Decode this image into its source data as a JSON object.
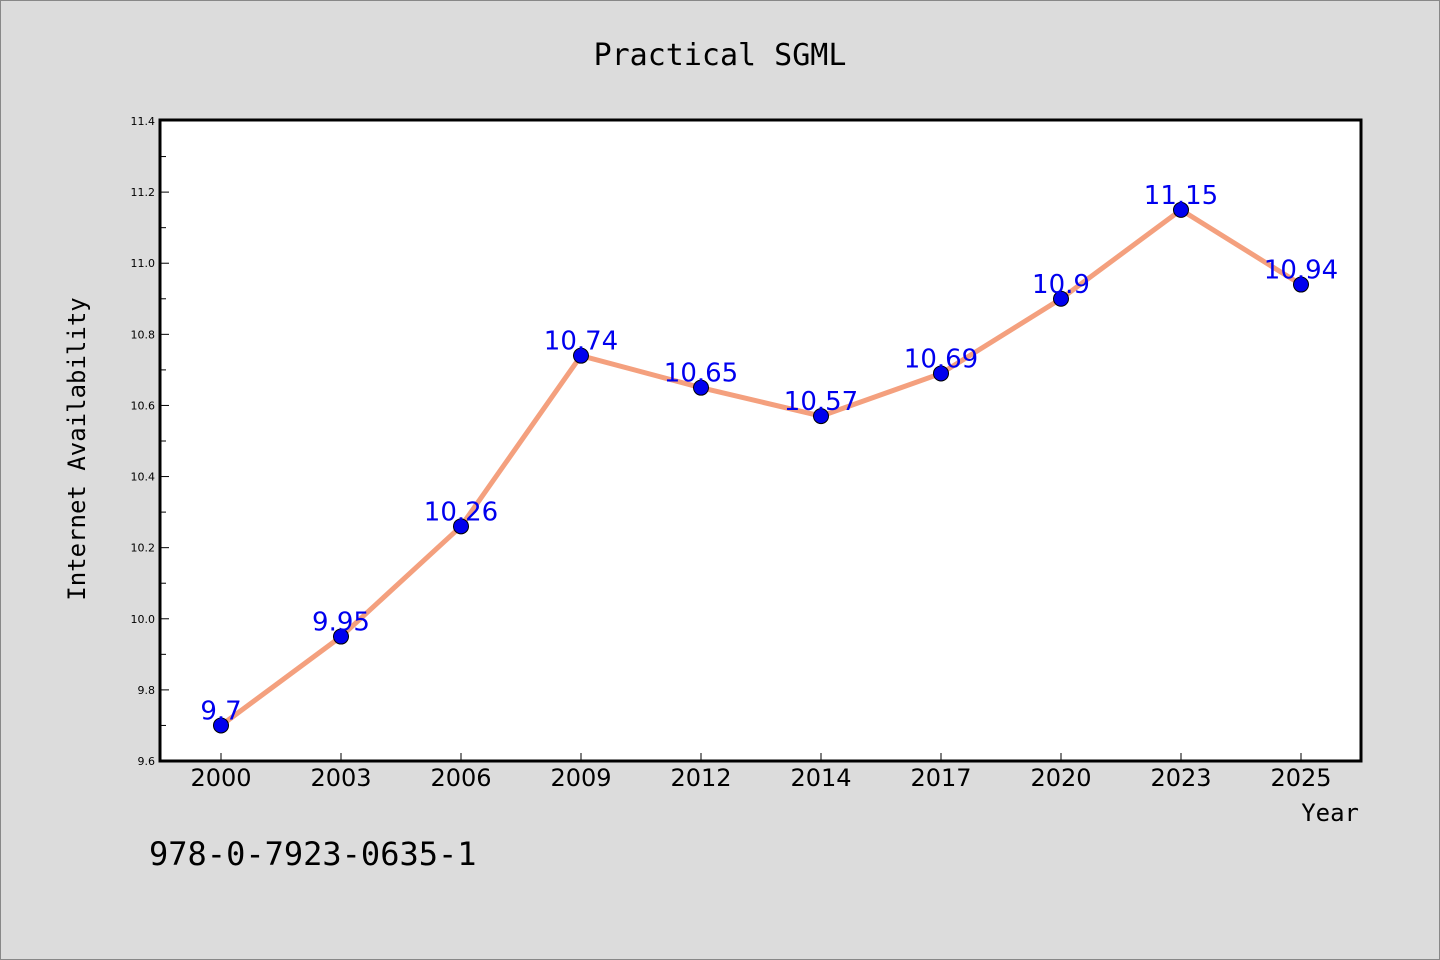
{
  "chart_data": {
    "type": "line",
    "title": "Practical SGML",
    "xlabel": "Year",
    "ylabel": "Internet Availability",
    "categories": [
      "2000",
      "2003",
      "2006",
      "2009",
      "2012",
      "2014",
      "2017",
      "2020",
      "2023",
      "2025"
    ],
    "series": [
      {
        "values": [
          9.7,
          9.95,
          10.26,
          10.74,
          10.65,
          10.57,
          10.69,
          10.9,
          11.15,
          10.94
        ]
      }
    ],
    "data_labels": [
      "9.7",
      "9.95",
      "10.26",
      "10.74",
      "10.65",
      "10.57",
      "10.69",
      "10.9",
      "11.15",
      "10.94"
    ],
    "ylim": [
      9.6,
      11.4
    ],
    "y_ticks": [
      "9.6",
      "9.8",
      "10.0",
      "10.2",
      "10.4",
      "10.6",
      "10.8",
      "11.0",
      "11.2",
      "11.4"
    ],
    "grid": false,
    "legend": "none",
    "colors": {
      "line": "#f4a07e",
      "marker": "#0000ee",
      "data_label": "#0000ee",
      "background": "#dcdcdc",
      "plot_background": "#ffffff"
    }
  },
  "footer": {
    "isbn": "978-0-7923-0635-1"
  }
}
